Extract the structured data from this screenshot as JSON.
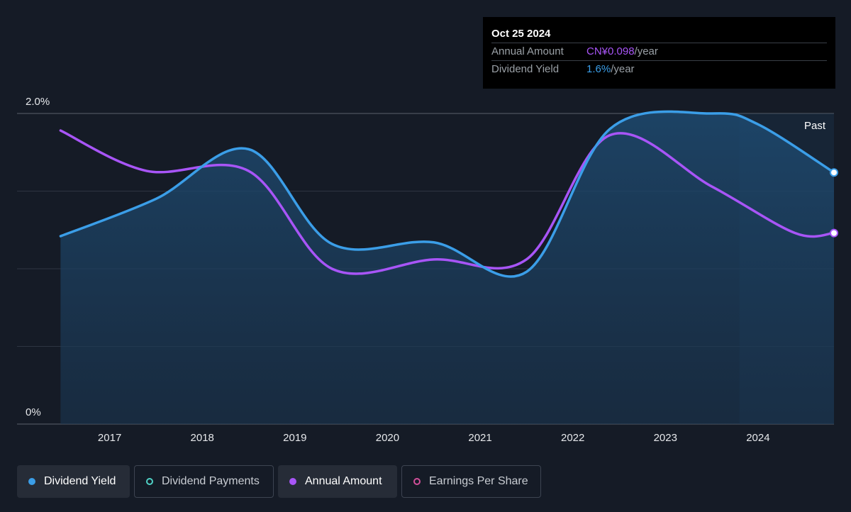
{
  "tooltip": {
    "date": "Oct 25 2024",
    "annual_amount_label": "Annual Amount",
    "annual_amount_value": "CN¥0.098",
    "annual_amount_unit": "/year",
    "dividend_yield_label": "Dividend Yield",
    "dividend_yield_value": "1.6%",
    "dividend_yield_unit": "/year"
  },
  "legend": [
    {
      "label": "Dividend Yield",
      "color": "#3b9ee8",
      "style": "filled"
    },
    {
      "label": "Dividend Payments",
      "color": "#4fd1c5",
      "style": "outline"
    },
    {
      "label": "Annual Amount",
      "color": "#a855f7",
      "style": "filled"
    },
    {
      "label": "Earnings Per Share",
      "color": "#d14f9a",
      "style": "outline"
    }
  ],
  "chart_data": {
    "type": "line",
    "past_label": "Past",
    "x_ticks": [
      "2017",
      "2018",
      "2019",
      "2020",
      "2021",
      "2022",
      "2023",
      "2024"
    ],
    "y_ticks": [
      "0%",
      "2.0%"
    ],
    "ylim": [
      0,
      2.0
    ],
    "xlim": [
      2016.0,
      2024.82
    ],
    "grid": true,
    "series": [
      {
        "name": "Dividend Yield",
        "color": "#3b9ee8",
        "area": true,
        "points": [
          [
            2016.47,
            1.21
          ],
          [
            2017.5,
            1.45
          ],
          [
            2018.5,
            1.77
          ],
          [
            2019.4,
            1.16
          ],
          [
            2020.5,
            1.17
          ],
          [
            2021.5,
            0.98
          ],
          [
            2022.4,
            1.9
          ],
          [
            2023.5,
            2.0
          ],
          [
            2024.0,
            1.93
          ],
          [
            2024.82,
            1.62
          ]
        ]
      },
      {
        "name": "Annual Amount",
        "color": "#a855f7",
        "area": false,
        "points": [
          [
            2016.47,
            1.89
          ],
          [
            2017.4,
            1.63
          ],
          [
            2018.5,
            1.63
          ],
          [
            2019.4,
            1.0
          ],
          [
            2020.5,
            1.06
          ],
          [
            2021.5,
            1.06
          ],
          [
            2022.4,
            1.86
          ],
          [
            2023.5,
            1.53
          ],
          [
            2024.4,
            1.23
          ],
          [
            2024.82,
            1.23
          ]
        ]
      }
    ]
  }
}
